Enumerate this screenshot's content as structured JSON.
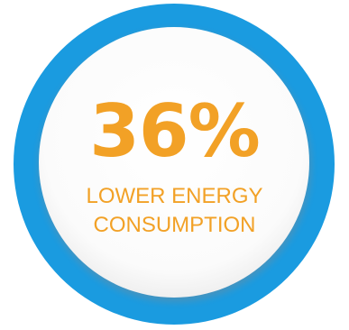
{
  "badge": {
    "value": "36%",
    "label_line1": "LOWER ENERGY",
    "label_line2": "CONSUMPTION"
  },
  "colors": {
    "ring": "#1a9be0",
    "text": "#f2a126",
    "inner": "#ffffff"
  }
}
